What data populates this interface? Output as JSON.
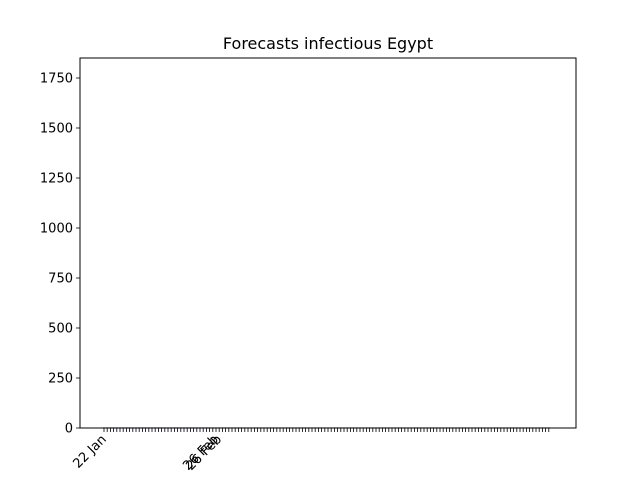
{
  "chart_data": {
    "type": "bar",
    "title": "Forecasts infectious Egypt",
    "xlabel": "",
    "ylabel": "",
    "ylim": [
      0,
      1850
    ],
    "yticks": [
      0,
      250,
      500,
      750,
      1000,
      1250,
      1500,
      1750
    ],
    "x_tick_labels": [
      "22 Jan",
      "26 Feb",
      "26 Feb"
    ],
    "grid": false,
    "legend": "none",
    "series": [
      {
        "color": "#0000cc",
        "start_date": "2020-01-22",
        "values": [
          0,
          0,
          0,
          0,
          0,
          0,
          0,
          0,
          0,
          0,
          0,
          0,
          0,
          0,
          0,
          0,
          0,
          0,
          0,
          0,
          0,
          0,
          0,
          0,
          0,
          0,
          0,
          0,
          0,
          0,
          0,
          0,
          0,
          0,
          1
        ]
      },
      {
        "color": "#007a00",
        "start_date": "2020-02-26",
        "values": [
          1,
          1,
          1,
          1,
          1,
          1,
          1,
          1,
          1,
          1,
          1,
          1,
          1,
          1,
          1,
          1,
          1,
          1,
          1,
          1,
          1,
          1,
          1,
          1,
          1,
          1,
          1,
          1,
          1,
          1,
          1,
          1,
          1,
          1,
          1,
          1,
          1,
          1,
          1,
          1,
          1,
          1,
          1,
          1,
          1,
          1,
          1,
          1,
          1,
          1,
          1,
          1,
          1,
          1,
          1,
          1,
          1,
          1,
          1,
          1,
          1,
          1,
          1,
          1,
          1,
          1,
          1,
          1,
          1,
          1,
          1,
          1,
          1,
          1,
          1,
          1,
          1,
          1,
          1,
          1,
          1,
          1,
          1,
          1,
          1,
          1,
          1,
          1,
          1,
          1,
          1,
          1,
          1,
          1,
          1,
          1,
          1,
          1,
          1,
          1,
          1,
          1,
          1,
          1,
          1
        ]
      }
    ]
  }
}
